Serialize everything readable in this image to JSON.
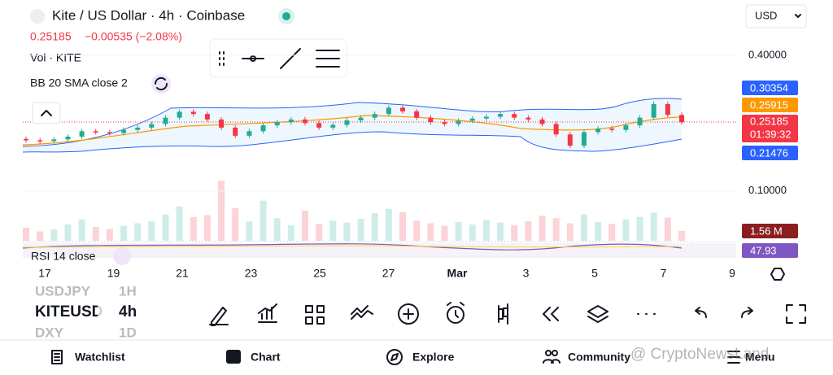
{
  "header": {
    "title": "Kite / US Dollar · 4h · Coinbase",
    "price": "0.25185",
    "change": "−0.00535 (−2.08%)",
    "currency": "USD"
  },
  "indicators": {
    "volume": "Vol · KITE",
    "bb": "BB 20 SMA close 2",
    "rsi": "RSI 14 close"
  },
  "price_axis": {
    "ylim": [
      -0.01,
      0.45
    ],
    "ticks": [
      {
        "value": 0.4,
        "label": "0.40000"
      },
      {
        "value": 0.1,
        "label": "0.10000"
      }
    ]
  },
  "tags": {
    "bb_upper": "0.30354",
    "bb_basis": "0.25915",
    "last_price": "0.25185",
    "countdown": "01:39:32",
    "bb_lower": "0.21476",
    "volume": "1.56 M",
    "rsi": "47.93"
  },
  "chart": {
    "open": 0.215,
    "closes": [
      0.212,
      0.21,
      0.214,
      0.22,
      0.232,
      0.23,
      0.228,
      0.235,
      0.24,
      0.248,
      0.262,
      0.275,
      0.27,
      0.258,
      0.24,
      0.222,
      0.232,
      0.245,
      0.252,
      0.258,
      0.25,
      0.24,
      0.246,
      0.256,
      0.262,
      0.27,
      0.284,
      0.276,
      0.262,
      0.252,
      0.248,
      0.255,
      0.26,
      0.264,
      0.27,
      0.262,
      0.258,
      0.248,
      0.225,
      0.2,
      0.23,
      0.238,
      0.235,
      0.245,
      0.262,
      0.292,
      0.268,
      0.25185
    ],
    "volumes": [
      2.1,
      1.5,
      1.8,
      2.6,
      3.4,
      2.2,
      1.9,
      2.4,
      2.8,
      3.1,
      4.2,
      5.5,
      3.8,
      4.1,
      9.6,
      5.2,
      3.1,
      6.4,
      3.6,
      2.5,
      4.8,
      2.7,
      3.2,
      2.9,
      3.5,
      4.4,
      5.1,
      4.6,
      3.2,
      2.8,
      2.4,
      3.0,
      2.6,
      3.3,
      2.9,
      2.5,
      3.1,
      4.0,
      3.6,
      2.8,
      4.2,
      3.0,
      2.7,
      3.4,
      3.8,
      4.5,
      3.7,
      1.56
    ]
  },
  "x_axis": [
    "17",
    "19",
    "21",
    "23",
    "25",
    "27",
    "Mar",
    "3",
    "5",
    "7",
    "9"
  ],
  "watchlist": [
    {
      "symbol": "USDJPY",
      "interval": "1H"
    },
    {
      "symbol": "KITEUSD",
      "interval": "4h"
    },
    {
      "symbol": "DXY",
      "interval": "1D"
    }
  ],
  "nav": [
    "Watchlist",
    "Chart",
    "Explore",
    "Community",
    "Menu"
  ],
  "watermark": "@ CryptoNewsLand"
}
